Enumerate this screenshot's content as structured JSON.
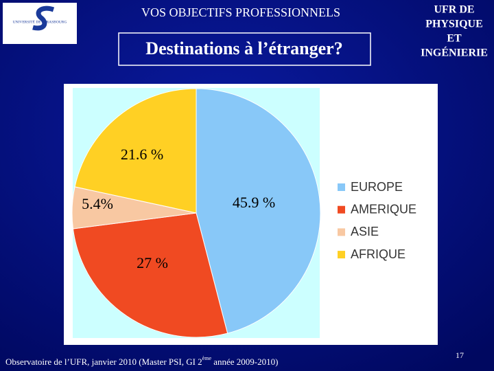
{
  "slide": {
    "logo_text": "UNIVERSITÉ DE STRASBOURG",
    "header": "VOS OBJECTIFS PROFESSIONNELS",
    "subtitle": "Destinations à l’étranger?",
    "unit_lines": [
      "UFR DE",
      "PHYSIQUE",
      "ET",
      "INGÉNIERIE"
    ],
    "footer": [
      "Observatoire de l’UFR, janvier 2010 (Master PSI, GI 2",
      "ème",
      " année 2009-2010)"
    ],
    "page_number": "17"
  },
  "chart_data": {
    "type": "pie",
    "categories": [
      "EUROPE",
      "AMERIQUE",
      "ASIE",
      "AFRIQUE"
    ],
    "values": [
      45.9,
      27,
      5.4,
      21.6
    ],
    "value_labels": [
      "45.9 %",
      "27 %",
      "5.4%",
      "21.6 %"
    ],
    "colors": [
      "#88c8f8",
      "#f04a22",
      "#f8c8a2",
      "#ffd024"
    ],
    "legend": "right"
  }
}
